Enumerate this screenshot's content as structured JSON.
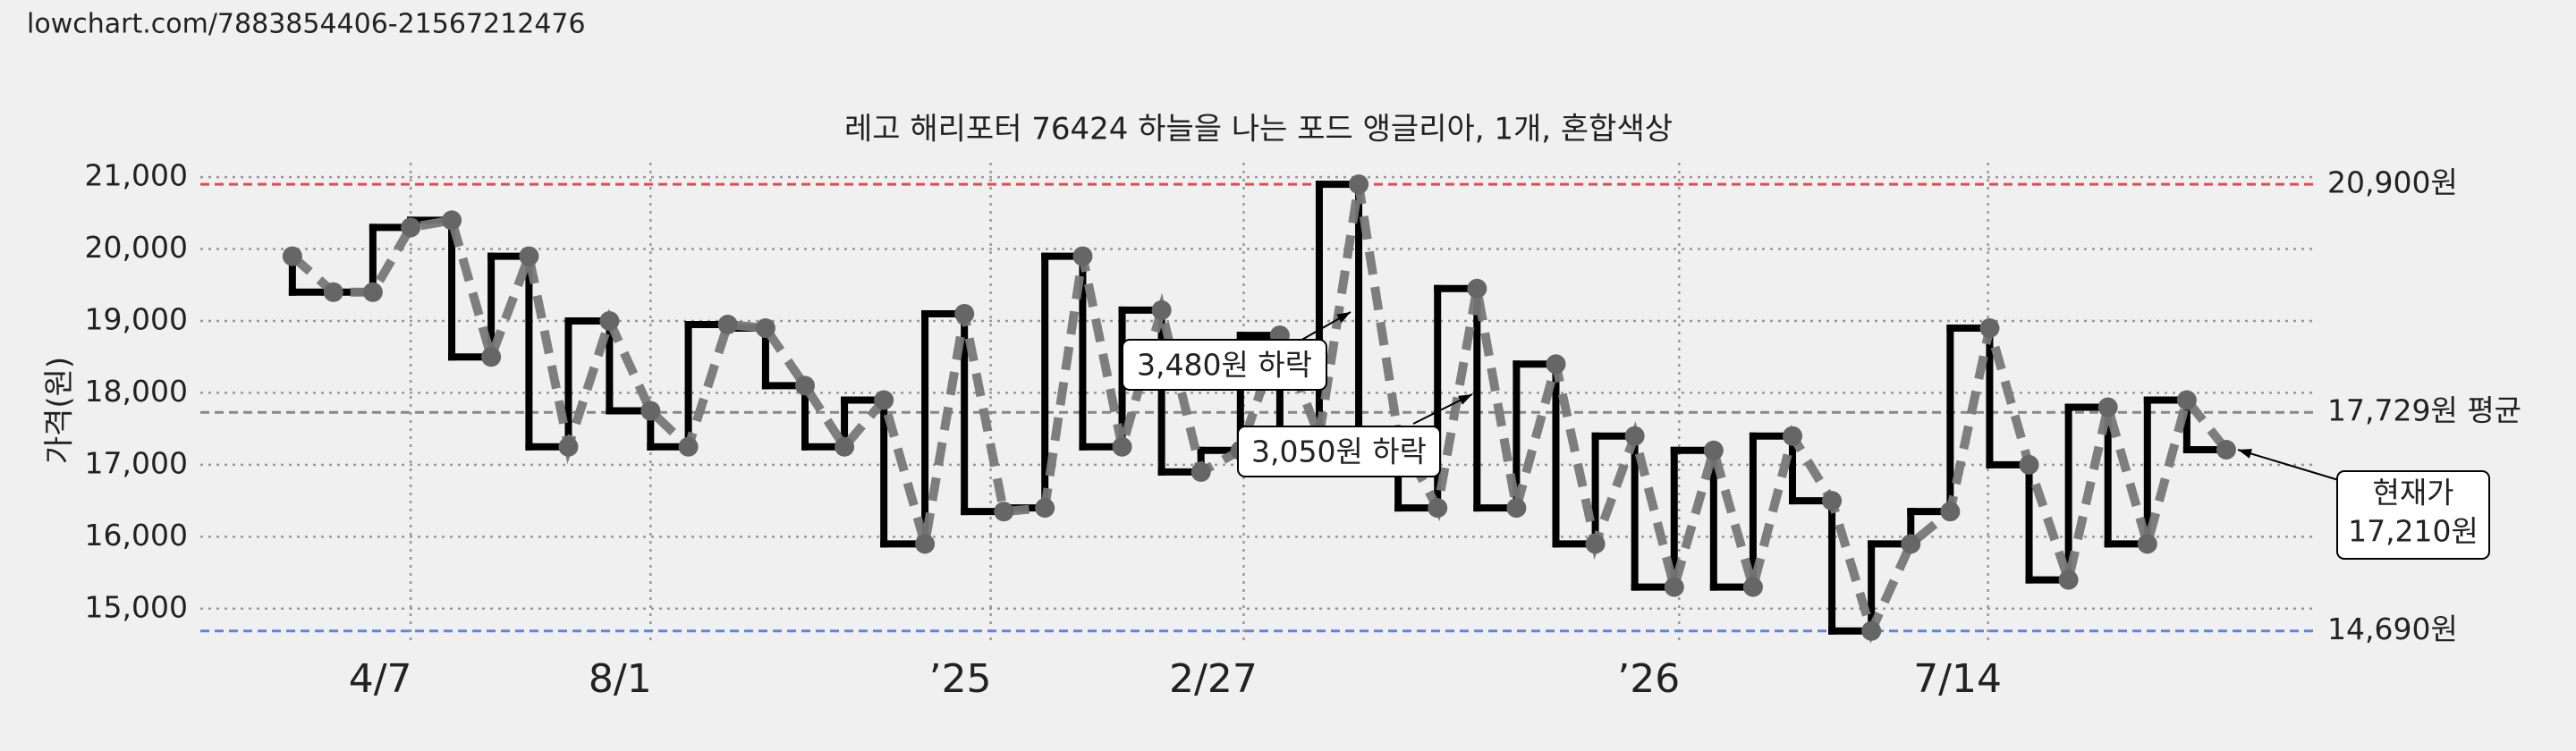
{
  "chart_data": {
    "type": "step-line",
    "source": "lowchart.com/7883854406-21567212476",
    "title": "레고 해리포터 76424 하늘을 나는 포드 앵글리아, 1개, 혼합색상",
    "ylabel": "가격(원)",
    "x": [
      56,
      81,
      105,
      128,
      153,
      177,
      200,
      224,
      249,
      274,
      297,
      321,
      344,
      368,
      392,
      416,
      441,
      465,
      489,
      514,
      537,
      561,
      585,
      609,
      633,
      657,
      681,
      705,
      729,
      753,
      777,
      801,
      825,
      849,
      873,
      897,
      921,
      945,
      969,
      993,
      1017,
      1041,
      1065,
      1089,
      1113,
      1137,
      1161,
      1185,
      1209,
      1233
    ],
    "values": [
      19900,
      19400,
      19400,
      20300,
      20400,
      18500,
      19900,
      17250,
      19000,
      17750,
      17250,
      18950,
      18900,
      18100,
      17250,
      17900,
      15900,
      19100,
      16350,
      16400,
      19900,
      17250,
      19150,
      16900,
      17200,
      18800,
      17400,
      20900,
      17420,
      16400,
      19450,
      16400,
      18400,
      15900,
      17400,
      15300,
      17200,
      15300,
      17400,
      16500,
      14690,
      15900,
      16350,
      18900,
      17000,
      15400,
      17800,
      15900,
      17900,
      17210
    ],
    "step_color": "#000000",
    "line_color": "#777777",
    "xlim": [
      0,
      1288
    ],
    "xticks": [
      {
        "value": 128,
        "label": "4/7"
      },
      {
        "value": 274,
        "label": "8/1"
      },
      {
        "value": 481,
        "label": "’25"
      },
      {
        "value": 635,
        "label": "2/27"
      },
      {
        "value": 900,
        "label": "’26"
      },
      {
        "value": 1088,
        "label": "7/14"
      }
    ],
    "ylim": [
      14500,
      21200
    ],
    "yticks": [
      {
        "value": 15000,
        "label": "15,000"
      },
      {
        "value": 16000,
        "label": "16,000"
      },
      {
        "value": 17000,
        "label": "17,000"
      },
      {
        "value": 18000,
        "label": "18,000"
      },
      {
        "value": 19000,
        "label": "19,000"
      },
      {
        "value": 20000,
        "label": "20,000"
      },
      {
        "value": 21000,
        "label": "21,000"
      }
    ],
    "grid": true,
    "reference_lines": [
      {
        "value": 20900,
        "label": "20,900원",
        "color": "#e84a4a"
      },
      {
        "value": 17729,
        "label": "17,729원 평균",
        "color": "#888888"
      },
      {
        "value": 14690,
        "label": "14,690원",
        "color": "#5a86e6"
      }
    ],
    "annotations": [
      "3,480원 하락",
      "3,050원 하락"
    ],
    "current_label": [
      "현재가",
      "17,210원"
    ]
  }
}
